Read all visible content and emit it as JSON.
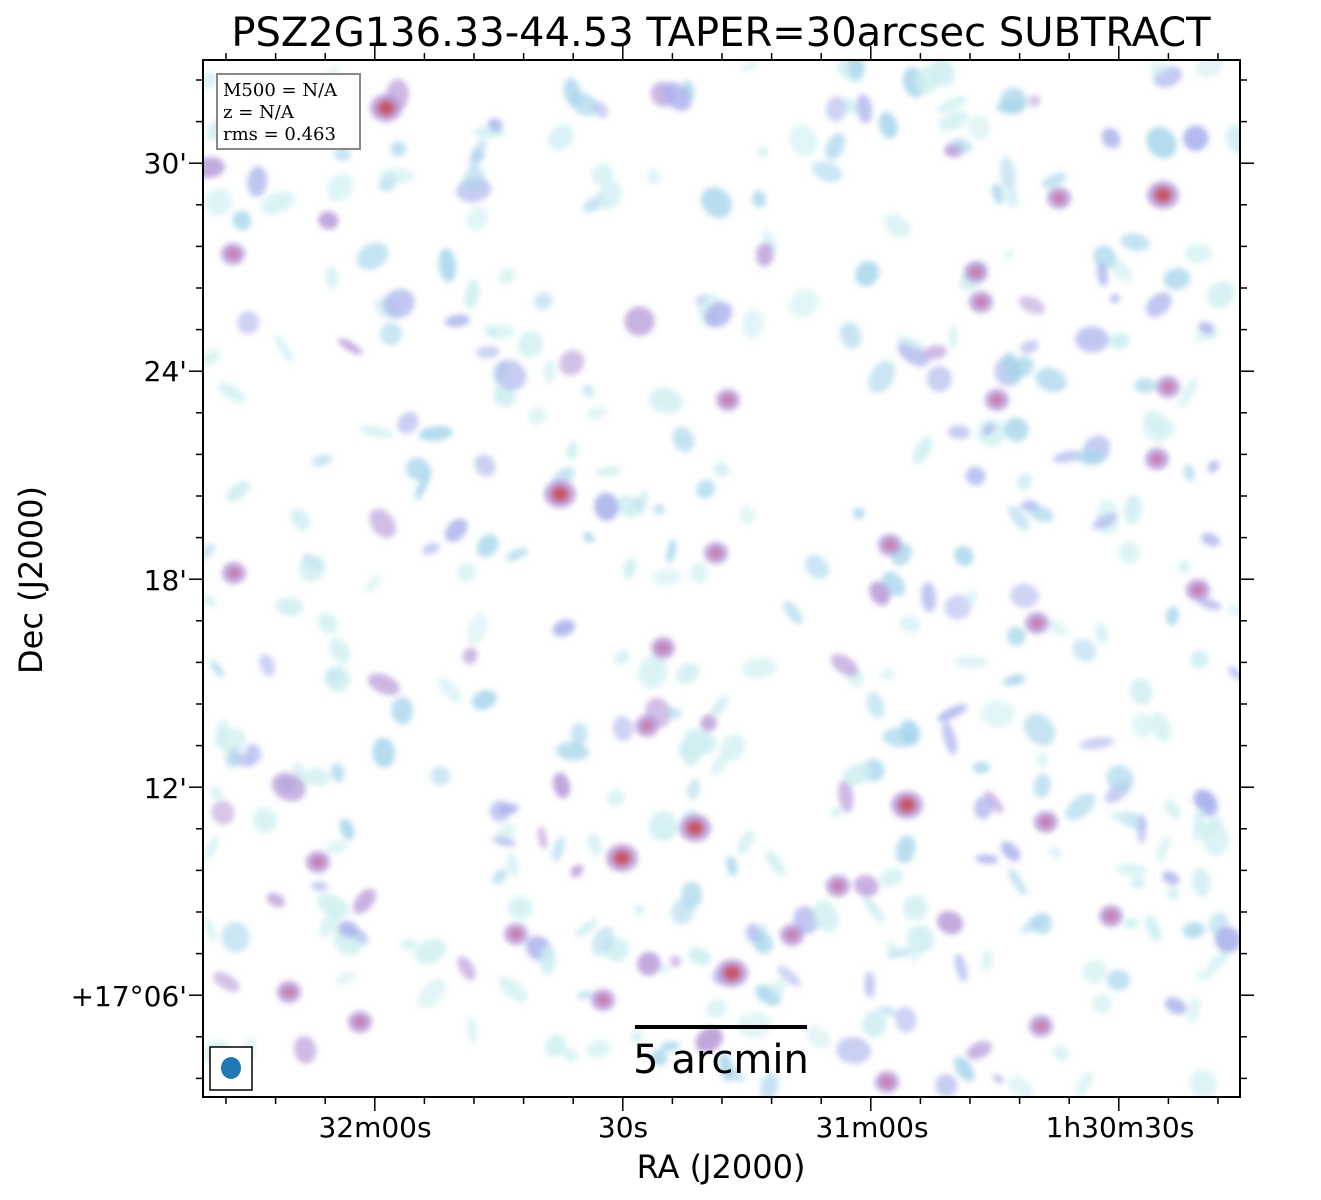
{
  "chart_data": {
    "type": "heatmap",
    "title": "PSZ2G136.33-44.53 TAPER=30arcsec SUBTRACT",
    "xlabel": "RA (J2000)",
    "ylabel": "Dec (J2000)",
    "x_ticks": [
      "32m00s",
      "30s",
      "31m00s",
      "1h30m30s"
    ],
    "y_ticks": [
      "30'",
      "24'",
      "18'",
      "12'",
      "+17°06'"
    ],
    "info": {
      "m500": "M500 = N/A",
      "z": "z = N/A",
      "rms": "rms = 0.463"
    },
    "scalebar_label": "5 arcmin",
    "colormap": [
      "#cdeef0",
      "#a9d6ec",
      "#aab2ec",
      "#b79ad8",
      "#cc6f9e",
      "#c9444e"
    ],
    "beam_color": "#1f77b4",
    "grid": false
  }
}
